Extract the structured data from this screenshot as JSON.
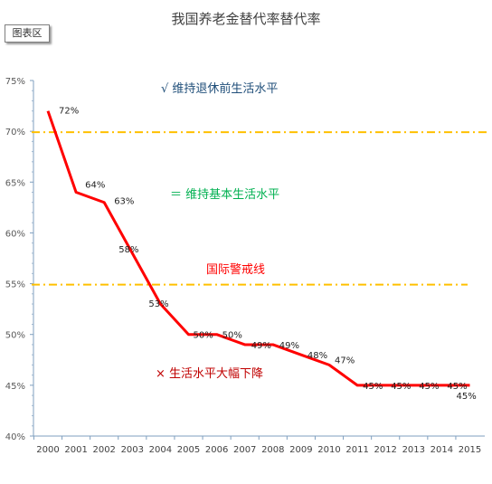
{
  "title": "我国养老金替代率替代率",
  "area_tag": "图表区",
  "chart_data": {
    "type": "line",
    "title": "我国养老金替代率替代率",
    "x": [
      "2000",
      "2001",
      "2002",
      "2003",
      "2004",
      "2005",
      "2006",
      "2007",
      "2008",
      "2009",
      "2010",
      "2011",
      "2012",
      "2013",
      "2014",
      "2015"
    ],
    "series": [
      {
        "values": [
          72,
          64,
          63,
          null,
          53,
          50,
          50,
          49,
          49,
          48,
          47,
          45,
          45,
          45,
          45,
          45
        ],
        "data_labels": [
          "72%",
          "64%",
          "63%",
          "58%",
          "53%",
          "50%",
          "50%",
          "49%",
          "49%",
          "48%",
          "47%",
          "45%",
          "45%",
          "45%",
          "45%",
          "45%"
        ],
        "color": "#ff0000"
      }
    ],
    "label_series_values": [
      72,
      64,
      63,
      58,
      53,
      50,
      50,
      49,
      49,
      48,
      47,
      45,
      45,
      45,
      45,
      45
    ],
    "ylim": [
      40,
      75
    ],
    "yticks": [
      "40%",
      "45%",
      "50%",
      "55%",
      "60%",
      "65%",
      "70%",
      "75%"
    ],
    "reference_lines": [
      {
        "value": 70,
        "color": "#ffc000"
      },
      {
        "value": 55,
        "color": "#ffc000"
      }
    ],
    "annotations": [
      {
        "text": "√  维持退休前生活水平",
        "color": "#1f4e79"
      },
      {
        "text": "＝ 维持基本生活水平",
        "color": "#00b050"
      },
      {
        "text": "国际警戒线",
        "color": "#ff0000"
      },
      {
        "text": "×  生活水平大幅下降",
        "color": "#c00000"
      }
    ],
    "grid": false,
    "legend": "none"
  }
}
